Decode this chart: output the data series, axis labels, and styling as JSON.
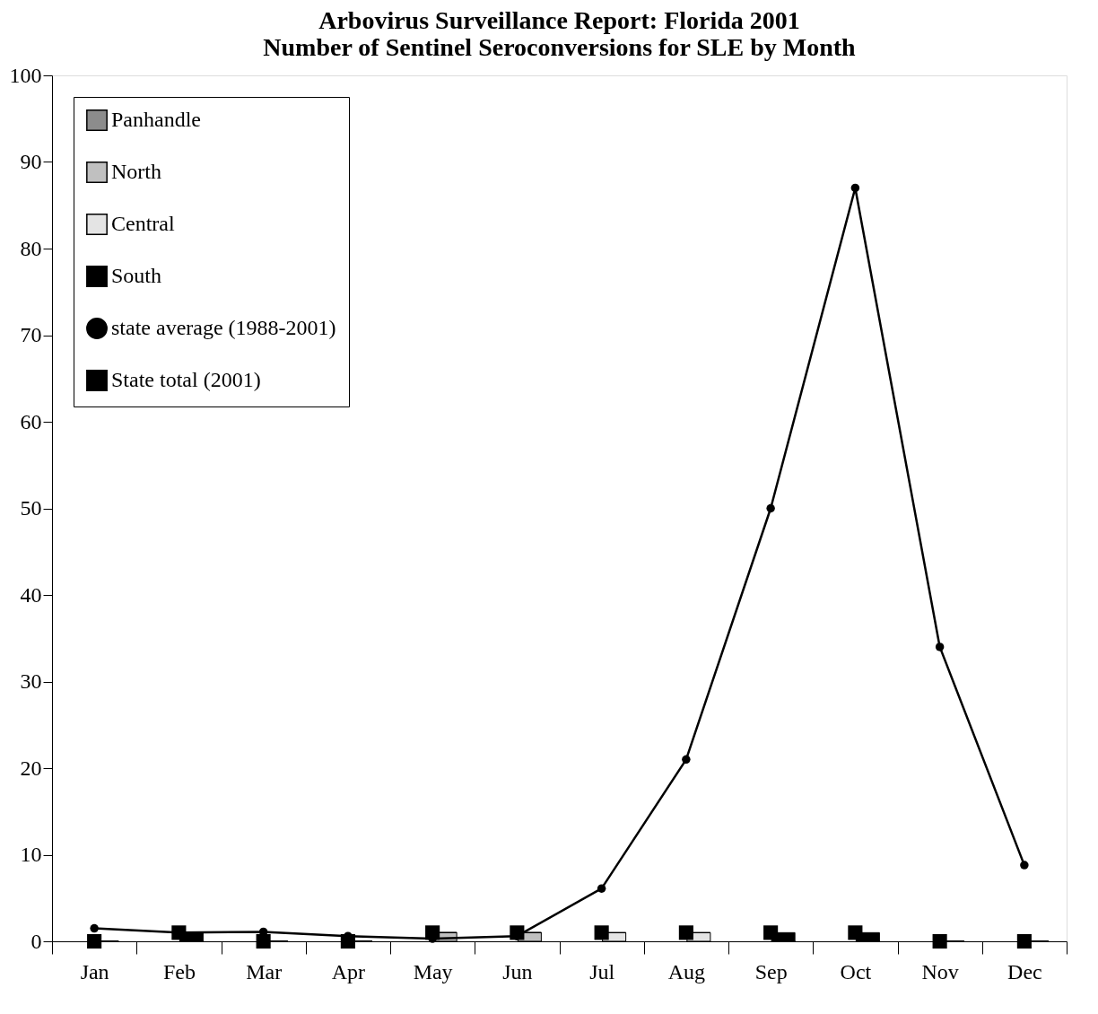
{
  "chart_data": {
    "type": "bar",
    "title": [
      "Arbovirus Surveillance Report: Florida 2001",
      "Number of Sentinel Seroconversions for SLE by Month"
    ],
    "categories": [
      "Jan",
      "Feb",
      "Mar",
      "Apr",
      "May",
      "Jun",
      "Jul",
      "Aug",
      "Sep",
      "Oct",
      "Nov",
      "Dec"
    ],
    "stacked": true,
    "series": [
      {
        "name": "Panhandle",
        "color": "#8c8c8c",
        "values": [
          0,
          0,
          0,
          0,
          0,
          0,
          0,
          0,
          0,
          0,
          0,
          0
        ]
      },
      {
        "name": "North",
        "color": "#c0c0c0",
        "values": [
          0,
          0,
          0,
          0,
          1,
          1,
          0,
          0,
          0,
          0,
          0,
          0
        ]
      },
      {
        "name": "Central",
        "color": "#e4e4e4",
        "values": [
          0,
          0,
          0,
          0,
          0,
          0,
          1,
          1,
          0,
          0,
          0,
          0
        ]
      },
      {
        "name": "South",
        "color": "#000000",
        "values": [
          0,
          1,
          0,
          0,
          0,
          0,
          0,
          0,
          1,
          1,
          0,
          0
        ]
      },
      {
        "name": "state average (1988-2001)",
        "type": "line",
        "marker": "circle",
        "color": "#000000",
        "values": [
          1.5,
          1.0,
          1.1,
          0.6,
          0.3,
          0.6,
          6.1,
          21,
          50,
          87,
          34,
          8.8
        ]
      },
      {
        "name": "State total (2001)",
        "type": "scatter",
        "marker": "square",
        "color": "#000000",
        "values": [
          0,
          1,
          0,
          0,
          1,
          1,
          1,
          1,
          1,
          1,
          0,
          0
        ]
      }
    ],
    "ylim": [
      0,
      100
    ],
    "yticks": [
      0,
      10,
      20,
      30,
      40,
      50,
      60,
      70,
      80,
      90,
      100
    ],
    "grid": false,
    "legend": "top left"
  }
}
